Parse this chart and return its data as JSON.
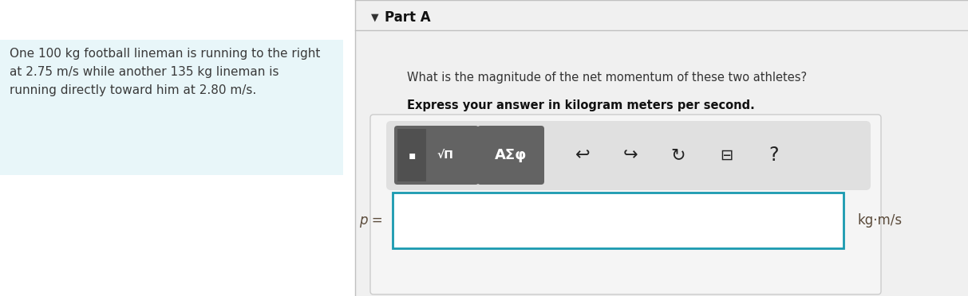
{
  "bg_color": "#ffffff",
  "fig_w": 12.13,
  "fig_h": 3.72,
  "dpi": 100,
  "left_panel_bg": "#e8f6f9",
  "left_panel_text_color": "#3a3a3a",
  "left_panel_text": "One 100 kg football lineman is running to the right\nat 2.75 m/s while another 135 kg lineman is\nrunning directly toward him at 2.80 m/s.",
  "right_bg": "#f0f0f0",
  "divider_color": "#c0c0c0",
  "part_a_label": "Part A",
  "question_text": "What is the magnitude of the net momentum of these two athletes?",
  "bold_text": "Express your answer in kilogram meters per second.",
  "toolbar_bg": "#e0e0e0",
  "btn_dark": "#636363",
  "btn_darker": "#505050",
  "icon_color": "#222222",
  "input_border": "#1a9ab0",
  "unit_label": "kg·m/s",
  "p_label": "p =",
  "text_color": "#333333"
}
